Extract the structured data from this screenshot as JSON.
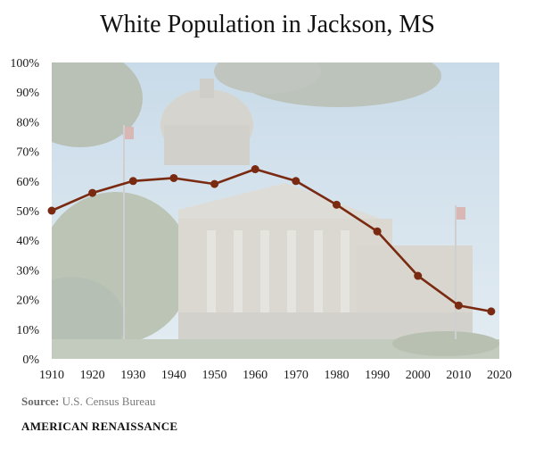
{
  "chart_data": {
    "type": "line",
    "title": "White Population in Jackson, MS",
    "xlabel": "",
    "ylabel": "",
    "x": [
      1910,
      1920,
      1930,
      1940,
      1950,
      1960,
      1970,
      1980,
      1990,
      2000,
      2010,
      2018
    ],
    "series": [
      {
        "values": [
          50,
          56,
          60,
          61,
          59,
          64,
          60,
          52,
          43,
          28,
          18,
          16
        ]
      }
    ],
    "x_ticks": [
      1910,
      1920,
      1930,
      1940,
      1950,
      1960,
      1970,
      1980,
      1990,
      2000,
      2010,
      2020
    ],
    "x_tick_labels": [
      "1910",
      "1920",
      "1930",
      "1940",
      "1950",
      "1960",
      "1970",
      "1980",
      "1990",
      "2000",
      "2010",
      "2020"
    ],
    "y_ticks": [
      0,
      10,
      20,
      30,
      40,
      50,
      60,
      70,
      80,
      90,
      100
    ],
    "y_tick_labels": [
      "0%",
      "10%",
      "20%",
      "30%",
      "40%",
      "50%",
      "60%",
      "70%",
      "80%",
      "90%",
      "100%"
    ],
    "xlim": [
      1910,
      2020
    ],
    "ylim": [
      0,
      100
    ],
    "grid": false,
    "legend": "none",
    "background": "faded photo of Mississippi State Capitol building",
    "line_color": "#7a2a10",
    "marker_color": "#7a2a10"
  },
  "source": {
    "label": "Source:",
    "text": "U.S. Census Bureau"
  },
  "brand": "AMERICAN RENAISSANCE"
}
